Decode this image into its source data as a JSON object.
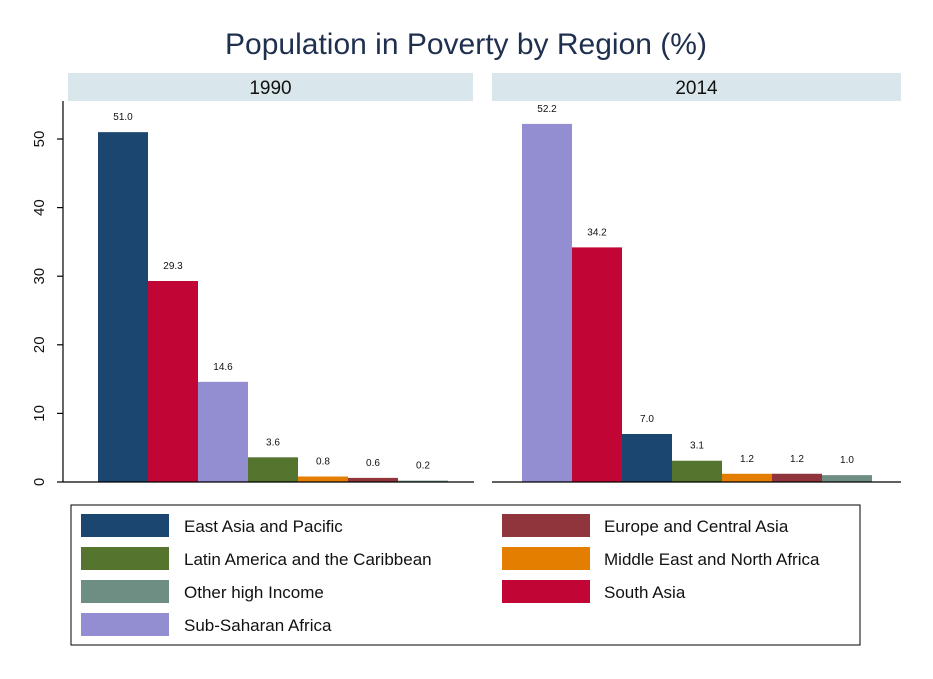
{
  "chart_data": {
    "type": "bar",
    "title": "Population in Poverty by Region (%)",
    "ylim": [
      0,
      55
    ],
    "yticks": [
      0,
      10,
      20,
      30,
      40,
      50
    ],
    "grid": false,
    "legend_position": "bottom",
    "series_colors": {
      "East Asia and Pacific": "#1b4670",
      "Europe and Central Asia": "#90353b",
      "Latin America and the Caribbean": "#55752f",
      "Middle East and North Africa": "#e37e00",
      "Other high Income": "#6e8e84",
      "South Asia": "#c10534",
      "Sub-Saharan Africa": "#938dd2"
    },
    "panels": [
      {
        "label": "1990",
        "bars": [
          {
            "region": "East Asia and Pacific",
            "value": 51.0,
            "label": "51.0"
          },
          {
            "region": "South Asia",
            "value": 29.3,
            "label": "29.3"
          },
          {
            "region": "Sub-Saharan Africa",
            "value": 14.6,
            "label": "14.6"
          },
          {
            "region": "Latin America and the Caribbean",
            "value": 3.6,
            "label": "3.6"
          },
          {
            "region": "Middle East and North Africa",
            "value": 0.8,
            "label": "0.8"
          },
          {
            "region": "Europe and Central Asia",
            "value": 0.6,
            "label": "0.6"
          },
          {
            "region": "Other high Income",
            "value": 0.2,
            "label": "0.2"
          }
        ]
      },
      {
        "label": "2014",
        "bars": [
          {
            "region": "Sub-Saharan Africa",
            "value": 52.2,
            "label": "52.2"
          },
          {
            "region": "South Asia",
            "value": 34.2,
            "label": "34.2"
          },
          {
            "region": "East Asia and Pacific",
            "value": 7.0,
            "label": "7.0"
          },
          {
            "region": "Latin America and the Caribbean",
            "value": 3.1,
            "label": "3.1"
          },
          {
            "region": "Middle East and North Africa",
            "value": 1.2,
            "label": "1.2"
          },
          {
            "region": "Europe and Central Asia",
            "value": 1.2,
            "label": "1.2"
          },
          {
            "region": "Other high Income",
            "value": 1.0,
            "label": "1.0"
          }
        ]
      }
    ],
    "legend": [
      "East Asia and Pacific",
      "Europe and Central Asia",
      "Latin America and the Caribbean",
      "Middle East and North Africa",
      "Other high Income",
      "South Asia",
      "Sub-Saharan Africa"
    ]
  }
}
